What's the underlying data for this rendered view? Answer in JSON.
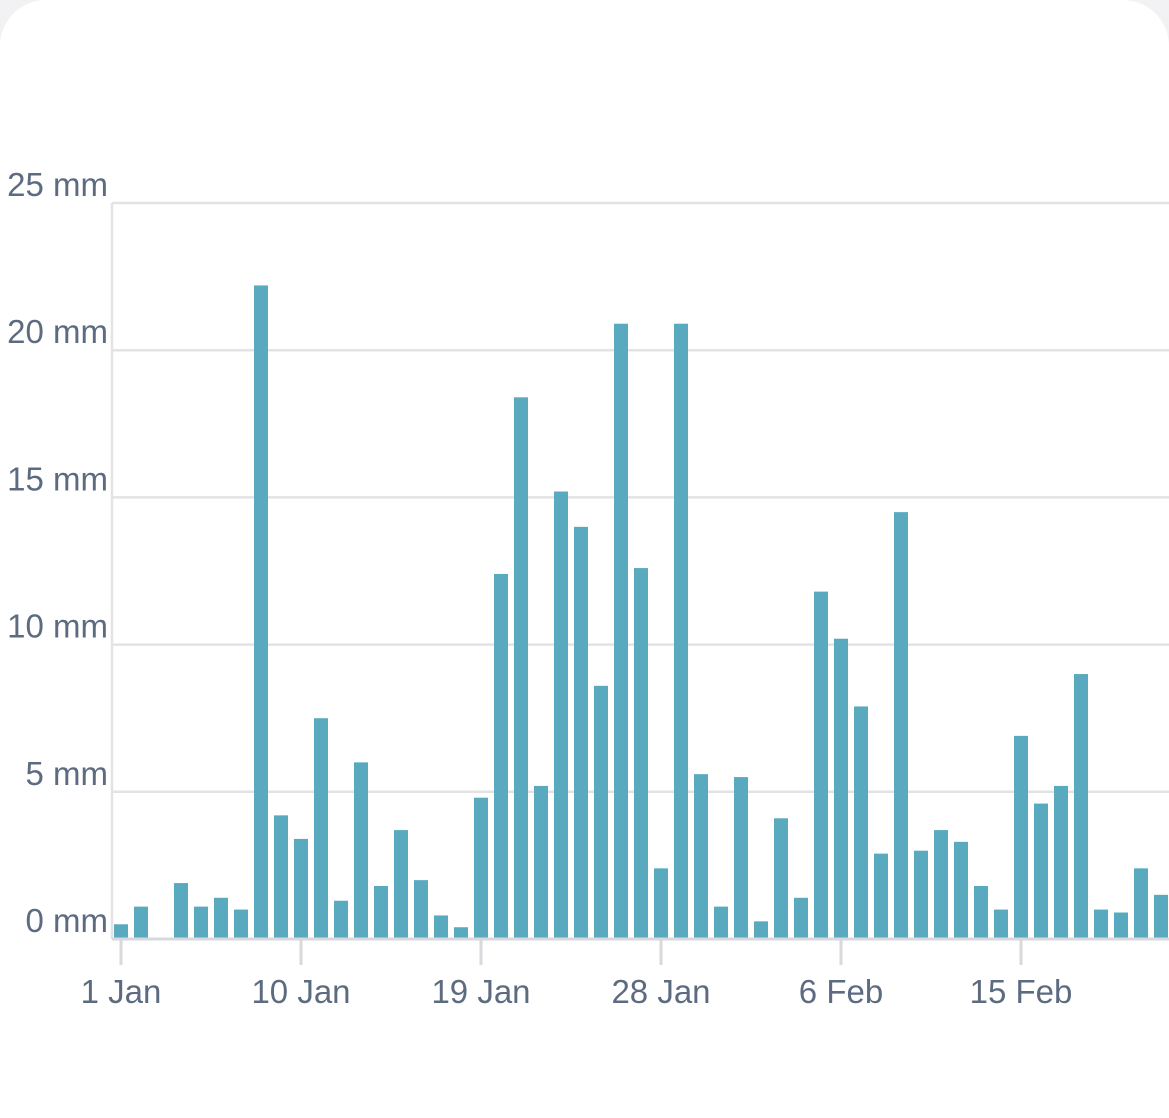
{
  "chart_data": {
    "type": "bar",
    "title": "",
    "xlabel": "",
    "ylabel": "",
    "unit": "mm",
    "ylim": [
      0,
      25
    ],
    "y_ticks": [
      0,
      5,
      10,
      15,
      20,
      25
    ],
    "y_tick_labels": [
      "0 mm",
      "5 mm",
      "10 mm",
      "15 mm",
      "20 mm",
      "25 mm"
    ],
    "x_tick_labels": [
      "1 Jan",
      "10 Jan",
      "19 Jan",
      "28 Jan",
      "6 Feb",
      "15 Feb"
    ],
    "x_tick_day_index": [
      0,
      9,
      18,
      27,
      36,
      45
    ],
    "grid": true,
    "bar_color": "#5aaabf",
    "categories": [
      "1 Jan",
      "2 Jan",
      "3 Jan",
      "4 Jan",
      "5 Jan",
      "6 Jan",
      "7 Jan",
      "8 Jan",
      "9 Jan",
      "10 Jan",
      "11 Jan",
      "12 Jan",
      "13 Jan",
      "14 Jan",
      "15 Jan",
      "16 Jan",
      "17 Jan",
      "18 Jan",
      "19 Jan",
      "20 Jan",
      "21 Jan",
      "22 Jan",
      "23 Jan",
      "24 Jan",
      "25 Jan",
      "26 Jan",
      "27 Jan",
      "28 Jan",
      "29 Jan",
      "30 Jan",
      "31 Jan",
      "1 Feb",
      "2 Feb",
      "3 Feb",
      "4 Feb",
      "5 Feb",
      "6 Feb",
      "7 Feb",
      "8 Feb",
      "9 Feb",
      "10 Feb",
      "11 Feb",
      "12 Feb",
      "13 Feb",
      "14 Feb",
      "15 Feb",
      "16 Feb",
      "17 Feb",
      "18 Feb",
      "19 Feb",
      "20 Feb",
      "21 Feb",
      "22 Feb"
    ],
    "values": [
      0.5,
      1.1,
      0,
      1.9,
      1.1,
      1.4,
      1.0,
      22.2,
      4.2,
      3.4,
      7.5,
      1.3,
      6.0,
      1.8,
      3.7,
      2.0,
      0.8,
      0.4,
      4.8,
      12.4,
      18.4,
      5.2,
      15.2,
      14.0,
      8.6,
      20.9,
      12.6,
      2.4,
      20.9,
      5.6,
      1.1,
      5.5,
      0.6,
      4.1,
      1.4,
      11.8,
      10.2,
      7.9,
      2.9,
      14.5,
      3.0,
      3.7,
      3.3,
      1.8,
      1.0,
      6.9,
      4.6,
      5.2,
      9.0,
      1.0,
      0.9,
      2.4,
      1.5
    ]
  }
}
